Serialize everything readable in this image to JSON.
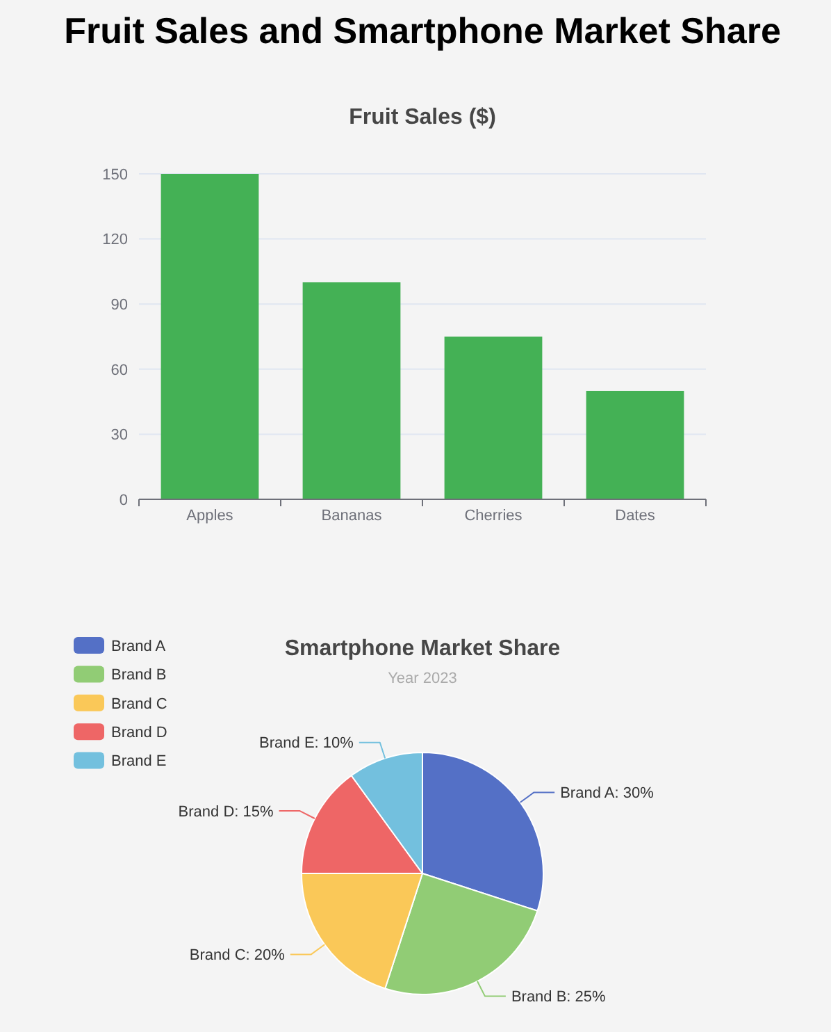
{
  "chart_data": [
    {
      "type": "other",
      "title": "Fruit Sales and Smartphone Market Share"
    },
    {
      "type": "bar",
      "title": "Fruit Sales ($)",
      "categories": [
        "Apples",
        "Bananas",
        "Cherries",
        "Dates"
      ],
      "values": [
        150,
        100,
        75,
        50
      ],
      "color": "#44b155",
      "ylim": [
        0,
        150
      ],
      "yticks": [
        0,
        30,
        60,
        90,
        120,
        150
      ],
      "grid": "y"
    },
    {
      "type": "pie",
      "title": "Smartphone Market Share",
      "subtitle": "Year 2023",
      "categories": [
        "Brand A",
        "Brand B",
        "Brand C",
        "Brand D",
        "Brand E"
      ],
      "values": [
        30,
        25,
        20,
        15,
        10
      ],
      "colors": [
        "#5470c6",
        "#91cc75",
        "#fac858",
        "#ee6666",
        "#73c0de"
      ],
      "value_labels": [
        "Brand A: 30%",
        "Brand B: 25%",
        "Brand C: 20%",
        "Brand D: 15%",
        "Brand E: 10%"
      ],
      "legend": "top left"
    }
  ]
}
